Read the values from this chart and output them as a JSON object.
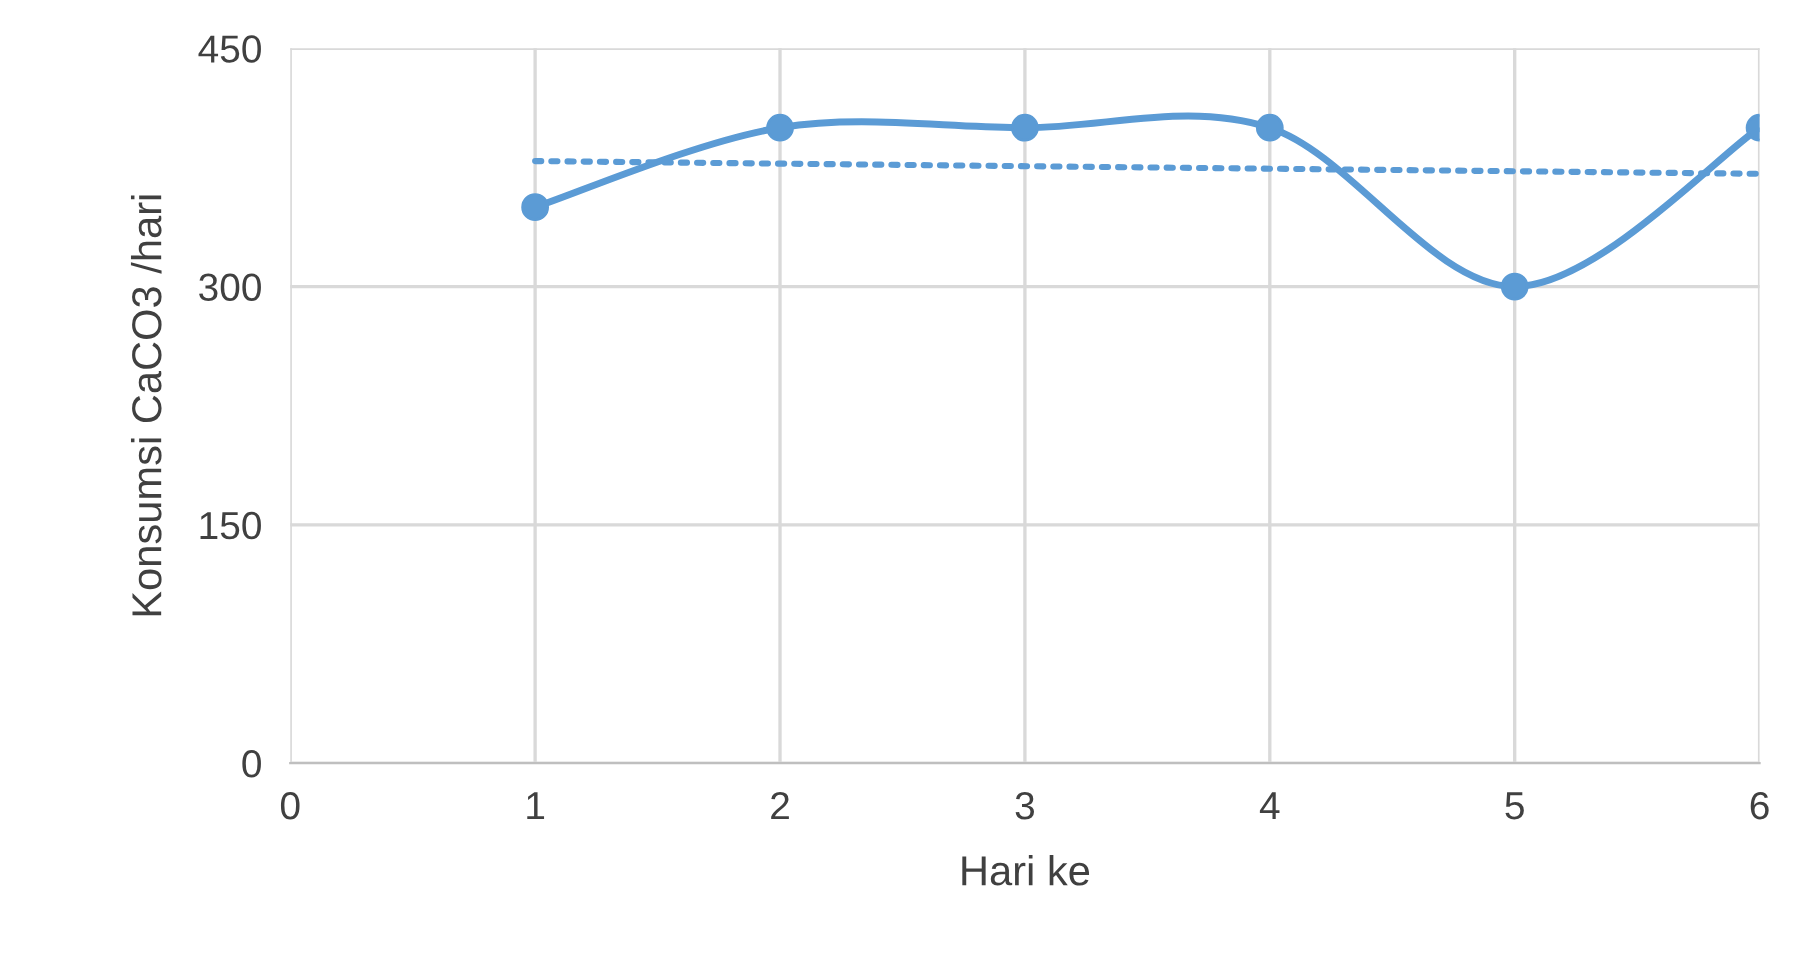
{
  "chart_data": {
    "type": "line",
    "xlabel": "Hari ke",
    "ylabel": "Konsumsi CaCO3 /hari",
    "xlim": [
      0,
      6
    ],
    "xticks": [
      0,
      1,
      2,
      3,
      4,
      5,
      6
    ],
    "ylim": [
      0,
      450
    ],
    "yticks": [
      0,
      150,
      300,
      450
    ],
    "grid": true,
    "legend": false,
    "series": [
      {
        "color": "#5b9bd5",
        "x": [
          1,
          2,
          3,
          4,
          5,
          6
        ],
        "values": [
          350,
          400,
          400,
          400,
          300,
          400
        ],
        "marker": "circle",
        "line_style": "solid"
      },
      {
        "color": "#5b9bd5",
        "x": [
          1,
          6
        ],
        "values": [
          379,
          371
        ],
        "marker": "none",
        "line_style": "dotted"
      }
    ]
  }
}
